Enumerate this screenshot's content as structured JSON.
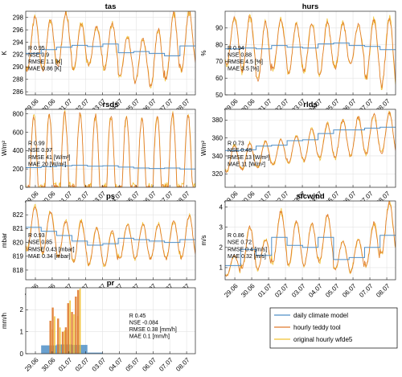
{
  "chart_data": [
    {
      "type": "line",
      "title": "tas",
      "ylabel": "K",
      "ylim": [
        285.5,
        299
      ],
      "yticks": [
        286,
        288,
        290,
        292,
        294,
        296,
        298
      ],
      "stats": [
        "R 0.95",
        "NSE 0.9",
        "RMSE 1.1 [K]",
        "MAE 0.86 [K]"
      ],
      "daily": [
        292.2,
        292.8,
        293.2,
        293.5,
        293.3,
        293.7,
        292.3,
        292.5,
        292.2,
        291.8,
        293.4
      ],
      "hourly_min": [
        289.5,
        289.6,
        290.3,
        289.7,
        290.4,
        289.7,
        288.4,
        287.5,
        286.8,
        288.0,
        289.5
      ],
      "hourly_max": [
        298.0,
        297.5,
        298.8,
        297.0,
        296.5,
        297.0,
        294.8,
        294.5,
        296.0,
        298.7,
        298.9
      ]
    },
    {
      "type": "line",
      "title": "hurs",
      "ylabel": "%",
      "ylim": [
        50,
        100
      ],
      "yticks": [
        50,
        60,
        70,
        80,
        90
      ],
      "stats": [
        "R 0.94",
        "NSE 0.88",
        "RMSE 4.5 [%]",
        "MAE 3.5 [%]"
      ],
      "daily": [
        77.5,
        78.0,
        77.5,
        79.5,
        78.5,
        78.0,
        80.5,
        81.0,
        79.5,
        79.0,
        77.0
      ],
      "hourly_min": [
        68,
        64,
        58,
        66,
        63,
        64,
        62,
        66,
        68,
        60,
        55
      ],
      "hourly_max": [
        96,
        97,
        93,
        95,
        92,
        93,
        94,
        93,
        92,
        95,
        96
      ]
    },
    {
      "type": "line",
      "title": "rsds",
      "ylabel": "W/m²",
      "ylim": [
        0,
        850
      ],
      "yticks": [
        0,
        200,
        400,
        600,
        800
      ],
      "stats": [
        "R 0.99",
        "NSE 0.97",
        "RMSE 41 [W/m²]",
        "MAE 20 [W/m²]"
      ],
      "daily": [
        215,
        225,
        235,
        240,
        230,
        235,
        220,
        210,
        205,
        210,
        200
      ],
      "hourly_min": [
        0,
        0,
        0,
        0,
        0,
        0,
        0,
        0,
        0,
        0,
        0
      ],
      "hourly_max": [
        760,
        780,
        800,
        790,
        780,
        790,
        760,
        740,
        780,
        790,
        780
      ]
    },
    {
      "type": "line",
      "title": "rlds",
      "ylabel": "W/m²",
      "ylim": [
        305,
        392
      ],
      "yticks": [
        320,
        340,
        360,
        380
      ],
      "stats": [
        "R 0.73",
        "NSE 0.48",
        "RMSE 13 [W/m²]",
        "MAE 11 [W/m²]"
      ],
      "daily": [
        346,
        347,
        351,
        352,
        357,
        358,
        365,
        369,
        369,
        371,
        372
      ],
      "hourly_min": [
        322,
        325,
        327,
        330,
        333,
        335,
        337,
        338,
        340,
        342,
        343
      ],
      "hourly_max": [
        352,
        354,
        356,
        358,
        362,
        370,
        376,
        380,
        383,
        386,
        388
      ]
    },
    {
      "type": "line",
      "title": "ps",
      "ylabel": "mbar",
      "ylim": [
        817.3,
        823
      ],
      "yticks": [
        818,
        819,
        820,
        821,
        822
      ],
      "stats": [
        "R 0.93",
        "NSE 0.85",
        "RMSE 0.43 [mbar]",
        "MAE 0.34 [mbar]"
      ],
      "daily": [
        821.1,
        820.8,
        820.5,
        820.1,
        819.8,
        819.9,
        820.3,
        820.2,
        820.1,
        820.0,
        820.2
      ],
      "hourly_min": [
        819.5,
        819.2,
        819.0,
        818.6,
        818.4,
        818.3,
        818.8,
        818.8,
        818.8,
        818.8,
        818.9
      ],
      "hourly_max": [
        822.6,
        822.2,
        821.5,
        821.5,
        821.0,
        820.8,
        821.3,
        821.3,
        821.3,
        821.5,
        821.9
      ]
    },
    {
      "type": "line",
      "title": "sfcwind",
      "ylabel": "m/s",
      "ylim": [
        0.4,
        4.3
      ],
      "yticks": [
        1,
        2,
        3,
        4
      ],
      "stats": [
        "R 0.86",
        "NSE 0.72",
        "RMSE 0.4 [m/s]",
        "MAE 0.32 [m/s]"
      ],
      "daily": [
        1.1,
        1.9,
        1.6,
        2.5,
        2.1,
        2.0,
        2.5,
        1.4,
        1.5,
        2.0,
        2.6
      ],
      "hourly_min": [
        0.6,
        1.0,
        0.9,
        1.3,
        1.1,
        1.1,
        1.3,
        0.9,
        0.8,
        1.1,
        1.7
      ],
      "hourly_max": [
        1.6,
        3.0,
        2.4,
        3.8,
        3.3,
        3.2,
        3.6,
        2.3,
        2.4,
        3.2,
        4.2
      ]
    },
    {
      "type": "bar",
      "title": "pr",
      "ylabel": "mm/h",
      "ylim": [
        0,
        3
      ],
      "yticks": [
        0,
        1,
        2
      ],
      "stats": [
        "R 0.45",
        "NSE -0.084",
        "RMSE 0.38 [mm/h]",
        "MAE 0.1 [mm/h]"
      ],
      "daily": [
        0,
        0.38,
        0.42,
        0.4,
        0.05,
        0,
        0,
        0,
        0,
        0,
        0
      ],
      "hourly_bursts": [
        {
          "day": 1.6,
          "peak": 1.5
        },
        {
          "day": 1.75,
          "peak": 2.1
        },
        {
          "day": 2.1,
          "peak": 1.6
        },
        {
          "day": 2.4,
          "peak": 1.0
        },
        {
          "day": 2.6,
          "peak": 1.2
        },
        {
          "day": 2.75,
          "peak": 2.3
        },
        {
          "day": 3.0,
          "peak": 1.9
        },
        {
          "day": 3.25,
          "peak": 2.6
        },
        {
          "day": 3.4,
          "peak": 2.9
        }
      ]
    }
  ],
  "x_tick_labels": [
    "29.06",
    "30.06",
    "01.07",
    "02.07",
    "03.07",
    "04.07",
    "05.07",
    "06.07",
    "07.07",
    "08.07"
  ],
  "legend": {
    "entries": [
      {
        "label": "daily climate model",
        "color": "#4f8fc7"
      },
      {
        "label": "hourly teddy tool",
        "color": "#e07a2e"
      },
      {
        "label": "original hourly wfde5",
        "color": "#f1c232"
      }
    ]
  }
}
